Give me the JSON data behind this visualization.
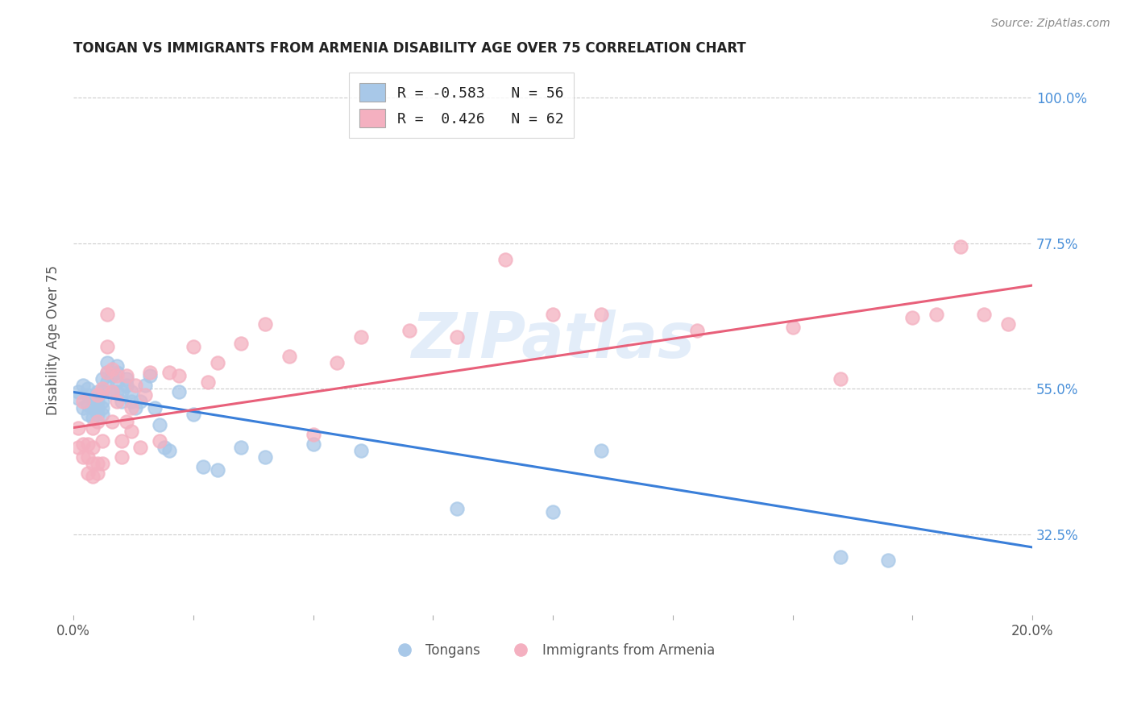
{
  "title": "TONGAN VS IMMIGRANTS FROM ARMENIA DISABILITY AGE OVER 75 CORRELATION CHART",
  "source": "Source: ZipAtlas.com",
  "ylabel": "Disability Age Over 75",
  "ytick_labels": [
    "100.0%",
    "77.5%",
    "55.0%",
    "32.5%"
  ],
  "ytick_values": [
    1.0,
    0.775,
    0.55,
    0.325
  ],
  "xmin": 0.0,
  "xmax": 0.2,
  "ymin": 0.2,
  "ymax": 1.05,
  "legend_r1_text": "R = -0.583   N = 56",
  "legend_r2_text": "R =  0.426   N = 62",
  "blue_scatter_color": "#a8c8e8",
  "pink_scatter_color": "#f4b0c0",
  "blue_line_color": "#3a7fd9",
  "pink_line_color": "#e8607a",
  "watermark": "ZIPatlas",
  "tongans_x": [
    0.001,
    0.001,
    0.002,
    0.002,
    0.003,
    0.003,
    0.003,
    0.003,
    0.004,
    0.004,
    0.004,
    0.005,
    0.005,
    0.005,
    0.005,
    0.006,
    0.006,
    0.006,
    0.006,
    0.006,
    0.007,
    0.007,
    0.007,
    0.008,
    0.008,
    0.009,
    0.009,
    0.009,
    0.009,
    0.01,
    0.01,
    0.011,
    0.011,
    0.012,
    0.012,
    0.013,
    0.014,
    0.015,
    0.016,
    0.017,
    0.018,
    0.019,
    0.02,
    0.022,
    0.025,
    0.027,
    0.03,
    0.035,
    0.04,
    0.05,
    0.06,
    0.08,
    0.1,
    0.11,
    0.16,
    0.17
  ],
  "tongans_y": [
    0.535,
    0.545,
    0.52,
    0.555,
    0.51,
    0.525,
    0.54,
    0.55,
    0.505,
    0.52,
    0.535,
    0.51,
    0.52,
    0.53,
    0.545,
    0.51,
    0.52,
    0.53,
    0.545,
    0.565,
    0.575,
    0.59,
    0.56,
    0.545,
    0.57,
    0.575,
    0.585,
    0.56,
    0.545,
    0.53,
    0.545,
    0.555,
    0.565,
    0.53,
    0.545,
    0.52,
    0.53,
    0.555,
    0.57,
    0.52,
    0.495,
    0.46,
    0.455,
    0.545,
    0.51,
    0.43,
    0.425,
    0.46,
    0.445,
    0.465,
    0.455,
    0.365,
    0.36,
    0.455,
    0.29,
    0.285
  ],
  "armenia_x": [
    0.001,
    0.001,
    0.002,
    0.002,
    0.002,
    0.003,
    0.003,
    0.003,
    0.004,
    0.004,
    0.004,
    0.004,
    0.005,
    0.005,
    0.005,
    0.005,
    0.006,
    0.006,
    0.006,
    0.007,
    0.007,
    0.007,
    0.008,
    0.008,
    0.008,
    0.009,
    0.009,
    0.01,
    0.01,
    0.011,
    0.011,
    0.012,
    0.012,
    0.013,
    0.014,
    0.015,
    0.016,
    0.018,
    0.02,
    0.022,
    0.025,
    0.028,
    0.03,
    0.035,
    0.04,
    0.045,
    0.05,
    0.055,
    0.06,
    0.07,
    0.08,
    0.09,
    0.1,
    0.11,
    0.13,
    0.15,
    0.16,
    0.175,
    0.18,
    0.185,
    0.19,
    0.195
  ],
  "armenia_y": [
    0.46,
    0.49,
    0.445,
    0.465,
    0.53,
    0.42,
    0.445,
    0.465,
    0.415,
    0.435,
    0.46,
    0.49,
    0.42,
    0.435,
    0.5,
    0.54,
    0.435,
    0.47,
    0.55,
    0.575,
    0.615,
    0.665,
    0.5,
    0.545,
    0.58,
    0.53,
    0.57,
    0.445,
    0.47,
    0.5,
    0.57,
    0.485,
    0.52,
    0.555,
    0.46,
    0.54,
    0.575,
    0.47,
    0.575,
    0.57,
    0.615,
    0.56,
    0.59,
    0.62,
    0.65,
    0.6,
    0.48,
    0.59,
    0.63,
    0.64,
    0.63,
    0.75,
    0.665,
    0.665,
    0.64,
    0.645,
    0.565,
    0.66,
    0.665,
    0.77,
    0.665,
    0.65
  ],
  "blue_trend_x": [
    0.0,
    0.2
  ],
  "blue_trend_y": [
    0.545,
    0.305
  ],
  "pink_trend_x": [
    0.0,
    0.2
  ],
  "pink_trend_y": [
    0.49,
    0.71
  ]
}
